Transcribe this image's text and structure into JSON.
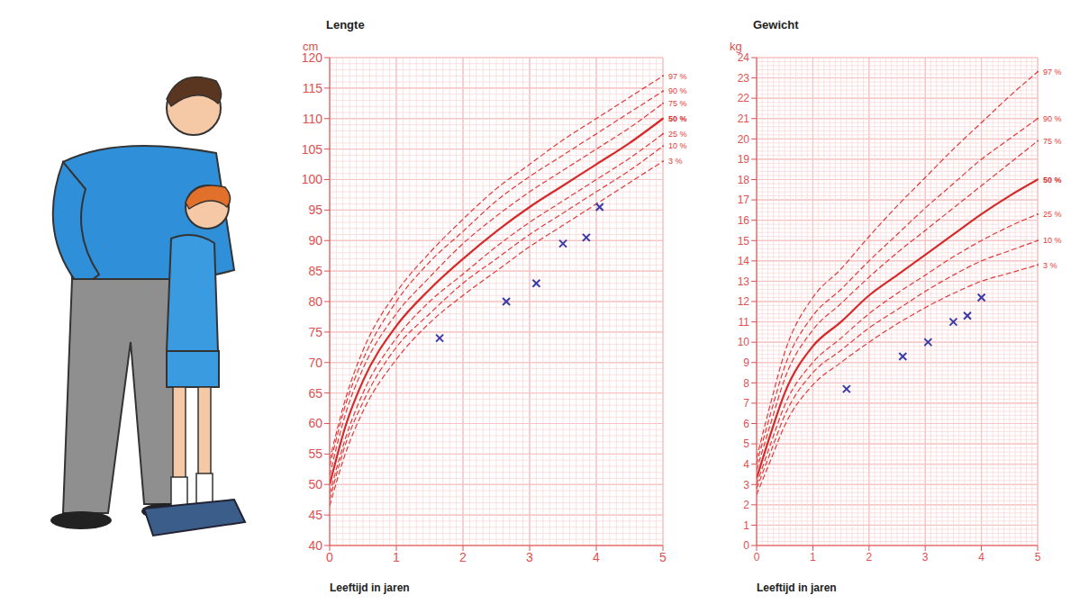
{
  "chart_data": [
    {
      "type": "line",
      "title": "Lengte",
      "y_label": "cm",
      "x_label": "Leeftijd in jaren",
      "x": [
        0,
        0.25,
        0.5,
        1,
        1.5,
        2,
        2.5,
        3,
        3.5,
        4,
        4.5,
        5
      ],
      "xlim": [
        0,
        5
      ],
      "xticks": [
        0,
        1,
        2,
        3,
        4,
        5
      ],
      "ylim": [
        40,
        120
      ],
      "yticks": [
        40,
        45,
        50,
        55,
        60,
        65,
        70,
        75,
        80,
        85,
        90,
        95,
        100,
        105,
        110,
        115,
        120
      ],
      "grid": true,
      "series": [
        {
          "name": "97 %",
          "color": "#e03a3a",
          "line_style": "dashed",
          "values": [
            54,
            64.5,
            72,
            81.5,
            88,
            93.5,
            98.5,
            102.5,
            106.5,
            110,
            113.5,
            117
          ]
        },
        {
          "name": "90 %",
          "color": "#e03a3a",
          "line_style": "dashed",
          "values": [
            53,
            63.5,
            70.5,
            80,
            86.5,
            91.5,
            96.5,
            100.5,
            104,
            107.5,
            111,
            114.5
          ]
        },
        {
          "name": "75 %",
          "color": "#e03a3a",
          "line_style": "dashed",
          "values": [
            51.5,
            62,
            69,
            78,
            84,
            89.5,
            94,
            98,
            101.5,
            105,
            108.5,
            112.5
          ]
        },
        {
          "name": "50 %",
          "color": "#d42a2a",
          "line_style": "solid",
          "values": [
            50,
            60,
            67,
            76,
            82,
            87,
            91.5,
            95.5,
            99,
            102.5,
            106,
            110
          ]
        },
        {
          "name": "25 %",
          "color": "#e03a3a",
          "line_style": "dashed",
          "values": [
            48.5,
            58,
            65,
            74,
            80,
            84.5,
            89,
            93,
            96.5,
            100,
            103.5,
            107.5
          ]
        },
        {
          "name": "10 %",
          "color": "#e03a3a",
          "line_style": "dashed",
          "values": [
            47.5,
            57,
            63.5,
            72.5,
            78,
            83,
            87,
            91,
            94.5,
            98,
            101.5,
            105.5
          ]
        },
        {
          "name": "3 %",
          "color": "#e03a3a",
          "line_style": "dashed",
          "values": [
            46.5,
            55.5,
            62,
            70.5,
            76.5,
            81,
            85,
            89,
            92.5,
            96,
            99.5,
            103
          ]
        },
        {
          "type": "scatter",
          "marker": "x",
          "color": "#3a3aa8",
          "x": [
            1.65,
            2.65,
            3.1,
            3.5,
            3.85,
            4.05
          ],
          "values": [
            74,
            80,
            83,
            89.5,
            90.5,
            95.5
          ]
        }
      ]
    },
    {
      "type": "line",
      "title": "Gewicht",
      "y_label": "kg",
      "x_label": "Leeftijd in jaren",
      "x": [
        0,
        0.25,
        0.5,
        1,
        1.5,
        2,
        2.5,
        3,
        3.5,
        4,
        4.5,
        5
      ],
      "xlim": [
        0,
        5
      ],
      "xticks": [
        0,
        1,
        2,
        3,
        4,
        5
      ],
      "ylim": [
        0,
        24
      ],
      "yticks": [
        0,
        1,
        2,
        3,
        4,
        5,
        6,
        7,
        8,
        9,
        10,
        11,
        12,
        13,
        14,
        15,
        16,
        17,
        18,
        19,
        20,
        21,
        22,
        23,
        24
      ],
      "grid": true,
      "series": [
        {
          "name": "97 %",
          "color": "#e03a3a",
          "line_style": "dashed",
          "values": [
            4.3,
            7,
            9.5,
            12.2,
            13.6,
            15.2,
            16.7,
            18.1,
            19.5,
            20.8,
            22.1,
            23.3
          ]
        },
        {
          "name": "90 %",
          "color": "#e03a3a",
          "line_style": "dashed",
          "values": [
            4,
            6.5,
            8.8,
            11.3,
            12.6,
            14,
            15.3,
            16.6,
            17.8,
            19,
            20,
            21
          ]
        },
        {
          "name": "75 %",
          "color": "#e03a3a",
          "line_style": "dashed",
          "values": [
            3.7,
            6,
            8.2,
            10.6,
            11.9,
            13.2,
            14.4,
            15.5,
            16.6,
            17.7,
            18.8,
            19.9
          ]
        },
        {
          "name": "50 %",
          "color": "#d42a2a",
          "line_style": "solid",
          "values": [
            3.3,
            5.5,
            7.5,
            9.8,
            11,
            12.3,
            13.3,
            14.3,
            15.3,
            16.3,
            17.2,
            18
          ]
        },
        {
          "name": "25 %",
          "color": "#e03a3a",
          "line_style": "dashed",
          "values": [
            3,
            5,
            6.9,
            9,
            10.2,
            11.4,
            12.4,
            13.3,
            14.2,
            15,
            15.7,
            16.3
          ]
        },
        {
          "name": "10 %",
          "color": "#e03a3a",
          "line_style": "dashed",
          "values": [
            2.8,
            4.6,
            6.4,
            8.5,
            9.6,
            10.7,
            11.6,
            12.5,
            13.3,
            14,
            14.5,
            15
          ]
        },
        {
          "name": "3 %",
          "color": "#e03a3a",
          "line_style": "dashed",
          "values": [
            2.5,
            4.2,
            5.9,
            7.9,
            9,
            10,
            10.9,
            11.7,
            12.4,
            13,
            13.4,
            13.8
          ]
        },
        {
          "type": "scatter",
          "marker": "x",
          "color": "#3a3aa8",
          "x": [
            1.6,
            2.6,
            3.05,
            3.5,
            3.75,
            4.0
          ],
          "values": [
            7.7,
            9.3,
            10,
            11,
            11.3,
            12.2
          ]
        }
      ]
    }
  ]
}
